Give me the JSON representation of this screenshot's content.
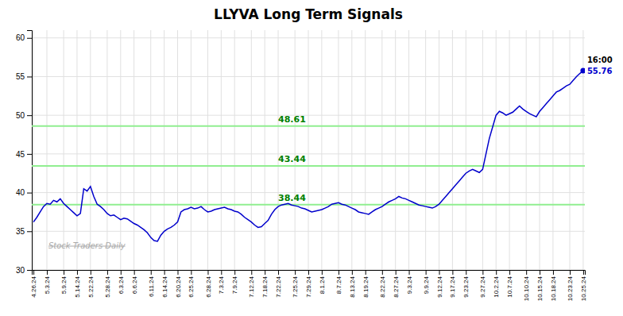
{
  "chart_data": {
    "type": "line",
    "title": "LLYVA Long Term Signals",
    "categories": [
      "4.26.24",
      null,
      null,
      null,
      "5.3.24",
      null,
      null,
      null,
      null,
      "5.9.24",
      null,
      null,
      null,
      "5.14.24",
      null,
      null,
      null,
      "5.22.24",
      null,
      null,
      null,
      null,
      "5.28.24",
      null,
      null,
      null,
      "6.3.24",
      null,
      null,
      null,
      "6.6.24",
      null,
      null,
      null,
      null,
      "6.11.24",
      null,
      null,
      null,
      "6.14.24",
      null,
      null,
      null,
      "6.20.24",
      null,
      null,
      null,
      "6.25.24",
      null,
      null,
      null,
      null,
      "6.28.24",
      null,
      null,
      null,
      "7.3.24",
      null,
      null,
      null,
      "7.9.24",
      null,
      null,
      null,
      null,
      "7.12.24",
      null,
      null,
      null,
      "7.18.24",
      null,
      null,
      null,
      "7.22.24",
      null,
      null,
      null,
      null,
      "7.25.24",
      null,
      null,
      null,
      "7.29.24",
      null,
      null,
      null,
      "8.1.24",
      null,
      null,
      null,
      null,
      "8.7.24",
      null,
      null,
      null,
      "8.13.24",
      null,
      null,
      null,
      "8.19.24",
      null,
      null,
      null,
      null,
      "8.22.24",
      null,
      null,
      null,
      "8.27.24",
      null,
      null,
      null,
      "9.3.24",
      null,
      null,
      null,
      null,
      "9.9.24",
      null,
      null,
      null,
      "9.12.24",
      null,
      null,
      null,
      "9.17.24",
      null,
      null,
      null,
      "9.23.24",
      null,
      null,
      null,
      null,
      "9.27.24",
      null,
      null,
      null,
      "10.2.24",
      null,
      null,
      null,
      "10.7.24",
      null,
      null,
      null,
      null,
      "10.10.24",
      null,
      null,
      null,
      "10.15.24",
      null,
      null,
      null,
      "10.18.24",
      null,
      null,
      null,
      null,
      "10.23.24",
      null,
      null,
      null,
      "10.25.24"
    ],
    "values": [
      36.2,
      36.8,
      37.5,
      38.2,
      38.6,
      38.5,
      39.0,
      38.8,
      39.2,
      38.6,
      38.2,
      37.8,
      37.4,
      37.0,
      37.3,
      40.5,
      40.2,
      40.8,
      39.5,
      38.5,
      38.2,
      37.8,
      37.3,
      37.0,
      37.1,
      36.8,
      36.5,
      36.7,
      36.6,
      36.3,
      36.0,
      35.8,
      35.5,
      35.2,
      34.8,
      34.2,
      33.8,
      33.7,
      34.5,
      35.0,
      35.3,
      35.5,
      35.8,
      36.2,
      37.5,
      37.8,
      37.9,
      38.1,
      37.9,
      38.0,
      38.2,
      37.8,
      37.5,
      37.6,
      37.8,
      37.9,
      38.0,
      38.1,
      37.9,
      37.8,
      37.6,
      37.5,
      37.2,
      36.8,
      36.5,
      36.2,
      35.8,
      35.5,
      35.6,
      36.0,
      36.4,
      37.2,
      37.8,
      38.2,
      38.4,
      38.5,
      38.6,
      38.4,
      38.3,
      38.2,
      38.0,
      37.9,
      37.7,
      37.5,
      37.6,
      37.7,
      37.8,
      38.0,
      38.2,
      38.5,
      38.6,
      38.7,
      38.5,
      38.4,
      38.2,
      38.0,
      37.8,
      37.5,
      37.4,
      37.3,
      37.2,
      37.5,
      37.8,
      38.0,
      38.2,
      38.5,
      38.8,
      39.0,
      39.2,
      39.5,
      39.3,
      39.2,
      39.0,
      38.8,
      38.6,
      38.4,
      38.3,
      38.2,
      38.1,
      38.0,
      38.2,
      38.5,
      39.0,
      39.5,
      40.0,
      40.5,
      41.0,
      41.5,
      42.0,
      42.5,
      42.8,
      43.0,
      42.8,
      42.6,
      43.0,
      45.0,
      47.0,
      48.5,
      50.0,
      50.5,
      50.3,
      50.0,
      50.2,
      50.4,
      50.8,
      51.2,
      50.8,
      50.5,
      50.2,
      50.0,
      49.8,
      50.5,
      51.0,
      51.5,
      52.0,
      52.5,
      53.0,
      53.2,
      53.5,
      53.8,
      54.0,
      54.5,
      55.0,
      55.4,
      55.76
    ],
    "color": "#0000CC",
    "ylim": [
      30,
      61
    ],
    "yticks": [
      30,
      35,
      40,
      45,
      50,
      55,
      60
    ],
    "grid": true,
    "hlines": [
      38.44,
      43.44,
      48.61
    ],
    "hline_labels": [
      "38.44",
      "43.44",
      "48.61"
    ],
    "hline_color": "#90EE90",
    "hline_label_color": "#008000",
    "endpoint_label": "16:00",
    "endpoint_value_label": "55.76",
    "watermark": "Stock Traders Daily"
  }
}
